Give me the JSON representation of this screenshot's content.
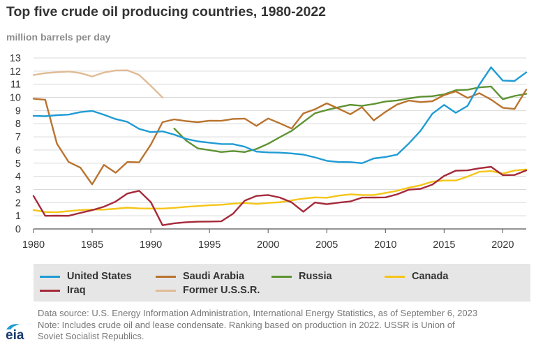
{
  "header": {
    "title": "Top five crude oil producing countries, 1980-2022",
    "units": "million barrels per day"
  },
  "footer": {
    "source_line1": "Data source: U.S. Energy Information Administration, International Energy Statistics, as of September 6, 2023",
    "source_line2": "Note: Includes crude oil and lease condensate. Ranking based on production in 2022. USSR is Union of",
    "source_line3": "Soviet Socialist Republics.",
    "logo_text": "eia"
  },
  "chart_data": {
    "type": "line",
    "title": "Top five crude oil producing countries, 1980-2022",
    "ylabel": "million barrels per day",
    "xlabel": "",
    "xlim": [
      1980,
      2022
    ],
    "ylim": [
      0,
      13
    ],
    "x_ticks": [
      1980,
      1985,
      1990,
      1995,
      2000,
      2005,
      2010,
      2015,
      2020
    ],
    "y_ticks": [
      0,
      1,
      2,
      3,
      4,
      5,
      6,
      7,
      8,
      9,
      10,
      11,
      12,
      13
    ],
    "grid": "horizontal",
    "legend_position": "bottom",
    "series": [
      {
        "name": "United States",
        "color": "#1f9bd4",
        "x": [
          1980,
          1981,
          1982,
          1983,
          1984,
          1985,
          1986,
          1987,
          1988,
          1989,
          1990,
          1991,
          1992,
          1993,
          1994,
          1995,
          1996,
          1997,
          1998,
          1999,
          2000,
          2001,
          2002,
          2003,
          2004,
          2005,
          2006,
          2007,
          2008,
          2009,
          2010,
          2011,
          2012,
          2013,
          2014,
          2015,
          2016,
          2017,
          2018,
          2019,
          2020,
          2021,
          2022
        ],
        "y": [
          8.6,
          8.57,
          8.65,
          8.69,
          8.88,
          8.97,
          8.68,
          8.35,
          8.14,
          7.61,
          7.36,
          7.42,
          7.17,
          6.85,
          6.66,
          6.56,
          6.46,
          6.45,
          6.25,
          5.88,
          5.82,
          5.8,
          5.74,
          5.65,
          5.44,
          5.18,
          5.09,
          5.08,
          5.0,
          5.36,
          5.47,
          5.65,
          6.5,
          7.47,
          8.76,
          9.43,
          8.83,
          9.36,
          10.96,
          12.29,
          11.28,
          11.25,
          11.9
        ]
      },
      {
        "name": "Saudi Arabia",
        "color": "#b9732e",
        "x": [
          1980,
          1981,
          1982,
          1983,
          1984,
          1985,
          1986,
          1987,
          1988,
          1989,
          1990,
          1991,
          1992,
          1993,
          1994,
          1995,
          1996,
          1997,
          1998,
          1999,
          2000,
          2001,
          2002,
          2003,
          2004,
          2005,
          2006,
          2007,
          2008,
          2009,
          2010,
          2011,
          2012,
          2013,
          2014,
          2015,
          2016,
          2017,
          2018,
          2019,
          2020,
          2021,
          2022
        ],
        "y": [
          9.9,
          9.82,
          6.48,
          5.09,
          4.66,
          3.39,
          4.87,
          4.27,
          5.09,
          5.06,
          6.41,
          8.12,
          8.33,
          8.2,
          8.12,
          8.23,
          8.22,
          8.36,
          8.39,
          7.83,
          8.4,
          8.03,
          7.63,
          8.78,
          9.1,
          9.55,
          9.15,
          8.72,
          9.26,
          8.25,
          8.9,
          9.46,
          9.76,
          9.64,
          9.71,
          10.17,
          10.46,
          9.96,
          10.32,
          9.83,
          9.21,
          9.12,
          10.59
        ]
      },
      {
        "name": "Russia",
        "color": "#5e9332",
        "x": [
          1992,
          1993,
          1994,
          1995,
          1996,
          1997,
          1998,
          1999,
          2000,
          2001,
          2002,
          2003,
          2004,
          2005,
          2006,
          2007,
          2008,
          2009,
          2010,
          2011,
          2012,
          2013,
          2014,
          2015,
          2016,
          2017,
          2018,
          2019,
          2020,
          2021,
          2022
        ],
        "y": [
          7.63,
          6.73,
          6.13,
          5.99,
          5.85,
          5.92,
          5.85,
          6.08,
          6.48,
          6.98,
          7.45,
          8.13,
          8.8,
          9.04,
          9.25,
          9.44,
          9.36,
          9.5,
          9.69,
          9.77,
          9.92,
          10.05,
          10.09,
          10.23,
          10.55,
          10.58,
          10.76,
          10.83,
          9.86,
          10.11,
          10.27
        ]
      },
      {
        "name": "Canada",
        "color": "#f5c518",
        "x": [
          1980,
          1981,
          1982,
          1983,
          1984,
          1985,
          1986,
          1987,
          1988,
          1989,
          1990,
          1991,
          1992,
          1993,
          1994,
          1995,
          1996,
          1997,
          1998,
          1999,
          2000,
          2001,
          2002,
          2003,
          2004,
          2005,
          2006,
          2007,
          2008,
          2009,
          2010,
          2011,
          2012,
          2013,
          2014,
          2015,
          2016,
          2017,
          2018,
          2019,
          2020,
          2021,
          2022
        ],
        "y": [
          1.44,
          1.29,
          1.27,
          1.36,
          1.44,
          1.47,
          1.47,
          1.54,
          1.62,
          1.56,
          1.55,
          1.55,
          1.6,
          1.68,
          1.74,
          1.8,
          1.84,
          1.92,
          1.98,
          1.9,
          1.98,
          2.03,
          2.17,
          2.31,
          2.4,
          2.37,
          2.53,
          2.63,
          2.58,
          2.58,
          2.74,
          2.9,
          3.14,
          3.32,
          3.6,
          3.68,
          3.68,
          3.98,
          4.34,
          4.4,
          4.21,
          4.44,
          4.52
        ]
      },
      {
        "name": "Iraq",
        "color": "#a52a3a",
        "x": [
          1980,
          1981,
          1982,
          1983,
          1984,
          1985,
          1986,
          1987,
          1988,
          1989,
          1990,
          1991,
          1992,
          1993,
          1994,
          1995,
          1996,
          1997,
          1998,
          1999,
          2000,
          2001,
          2002,
          2003,
          2004,
          2005,
          2006,
          2007,
          2008,
          2009,
          2010,
          2011,
          2012,
          2013,
          2014,
          2015,
          2016,
          2017,
          2018,
          2019,
          2020,
          2021,
          2022
        ],
        "y": [
          2.51,
          1.0,
          1.01,
          1.0,
          1.22,
          1.43,
          1.69,
          2.08,
          2.69,
          2.9,
          2.04,
          0.28,
          0.43,
          0.51,
          0.55,
          0.56,
          0.58,
          1.15,
          2.15,
          2.51,
          2.58,
          2.39,
          2.02,
          1.31,
          2.01,
          1.88,
          2.0,
          2.09,
          2.38,
          2.39,
          2.4,
          2.63,
          2.98,
          3.05,
          3.37,
          4.03,
          4.43,
          4.45,
          4.61,
          4.72,
          4.09,
          4.1,
          4.45
        ]
      },
      {
        "name": "Former U.S.S.R.",
        "color": "#e0bb96",
        "x": [
          1980,
          1981,
          1982,
          1983,
          1984,
          1985,
          1986,
          1987,
          1988,
          1989,
          1990,
          1991
        ],
        "y": [
          11.7,
          11.85,
          11.91,
          11.97,
          11.85,
          11.59,
          11.89,
          12.05,
          12.06,
          11.71,
          10.88,
          9.99
        ]
      }
    ]
  }
}
